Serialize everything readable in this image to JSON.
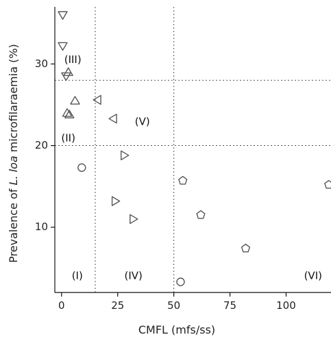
{
  "chart_data": {
    "type": "scatter",
    "title": "",
    "xlabel": "CMFL (mfs/ss)",
    "ylabel_parts": [
      "Prevalence of ",
      "L. loa",
      " microfilaraemia (%)"
    ],
    "xlim": [
      -3,
      120
    ],
    "ylim": [
      2,
      37
    ],
    "xticks": [
      0,
      25,
      50,
      75,
      100
    ],
    "yticks": [
      10,
      20,
      30
    ],
    "grid": false,
    "legend": "none",
    "thresholds": {
      "x": [
        15,
        50
      ],
      "y": [
        20,
        28
      ]
    },
    "region_labels": [
      {
        "text": "(I)",
        "x": 7,
        "y": 4
      },
      {
        "text": "(II)",
        "x": 3,
        "y": 20.9
      },
      {
        "text": "(III)",
        "x": 5,
        "y": 30.5
      },
      {
        "text": "(IV)",
        "x": 32,
        "y": 4
      },
      {
        "text": "(V)",
        "x": 36,
        "y": 22.9
      },
      {
        "text": "(VI)",
        "x": 112,
        "y": 4
      }
    ],
    "series": [
      {
        "marker": "triangle-down",
        "points": [
          [
            0.5,
            36
          ],
          [
            0.5,
            32.2
          ],
          [
            2,
            28.5
          ]
        ]
      },
      {
        "marker": "triangle-up",
        "points": [
          [
            3,
            29
          ],
          [
            6,
            25.5
          ],
          [
            2.5,
            24
          ],
          [
            3.5,
            23.8
          ]
        ]
      },
      {
        "marker": "triangle-left",
        "points": [
          [
            16,
            25.6
          ],
          [
            23,
            23.3
          ]
        ]
      },
      {
        "marker": "triangle-right",
        "points": [
          [
            28,
            18.8
          ],
          [
            24,
            13.2
          ],
          [
            32,
            11
          ]
        ]
      },
      {
        "marker": "circle",
        "points": [
          [
            9,
            17.3
          ],
          [
            53,
            3.3
          ]
        ]
      },
      {
        "marker": "pentagon",
        "points": [
          [
            54,
            15.7
          ],
          [
            62,
            11.5
          ],
          [
            82,
            7.4
          ],
          [
            119,
            15.2
          ]
        ]
      }
    ]
  }
}
